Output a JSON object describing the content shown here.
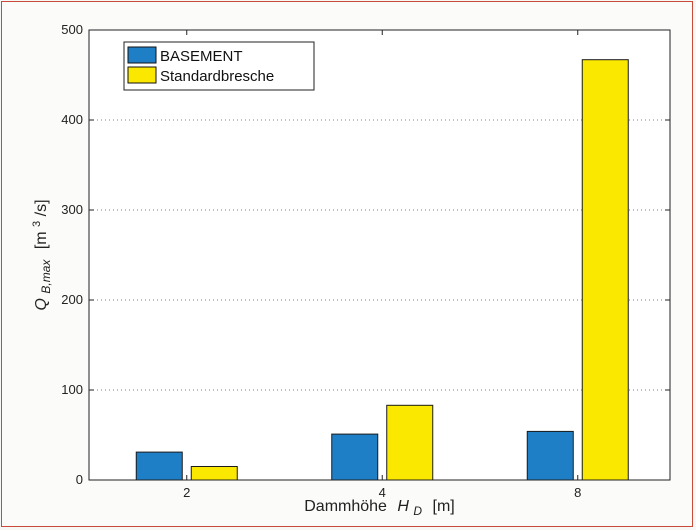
{
  "chart_data": {
    "type": "bar",
    "categories": [
      "2",
      "4",
      "8"
    ],
    "series": [
      {
        "name": "BASEMENT",
        "values": [
          31,
          51,
          54
        ],
        "color": "#1f7fc6"
      },
      {
        "name": "Standardbresche",
        "values": [
          15,
          83,
          467
        ],
        "color": "#fbe800"
      }
    ],
    "ylim": [
      0,
      500
    ],
    "yticks": [
      0,
      100,
      200,
      300,
      400,
      500
    ],
    "grid": "horizontal-dotted",
    "legend_position": "top-left",
    "xlabel": {
      "text": "Dammhöhe",
      "symbol": "H",
      "sub": "D",
      "unit": "[m]"
    },
    "ylabel": {
      "symbol": "Q",
      "sub": "B,max",
      "unit_pre": "[m",
      "unit_sup": "3",
      "unit_post": "/s]"
    }
  }
}
